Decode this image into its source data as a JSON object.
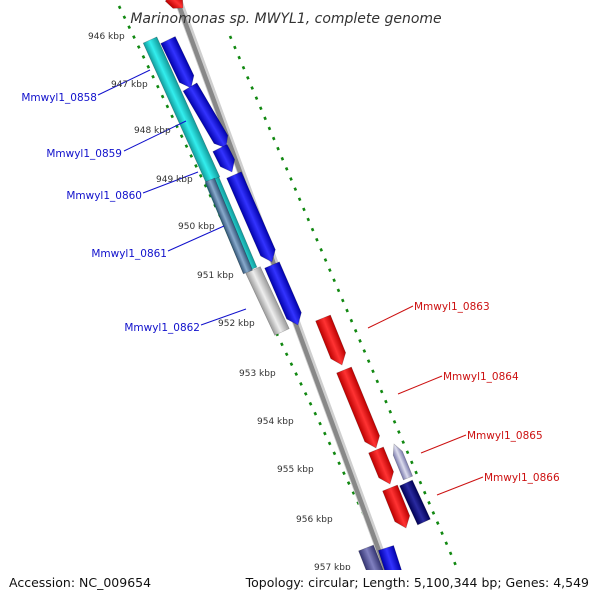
{
  "title": "Marinomonas sp. MWYL1, complete genome",
  "ticks": [
    "946 kbp",
    "947 kbp",
    "948 kbp",
    "949 kbp",
    "950 kbp",
    "951 kbp",
    "952 kbp",
    "953 kbp",
    "954 kbp",
    "955 kbp",
    "956 kbp",
    "957 kbp"
  ],
  "labels": {
    "left": [
      "Mmwyl1_0858",
      "Mmwyl1_0859",
      "Mmwyl1_0860",
      "Mmwyl1_0861",
      "Mmwyl1_0862"
    ],
    "right": [
      "Mmwyl1_0863",
      "Mmwyl1_0864",
      "Mmwyl1_0865",
      "Mmwyl1_0866"
    ]
  },
  "footer": {
    "accession": "Accession: NC_009654",
    "stats": "Topology: circular; Length: 5,100,344 bp; Genes: 4,549"
  },
  "colors": {
    "forward_cds": "#1515e6",
    "reverse_cds": "#ee1111",
    "tick_track": "#118811",
    "backbone": "#888888",
    "left_label": "#1111cc",
    "right_label": "#cc1111",
    "cyan_track": "#22cccc",
    "steel_track": "#5588aa",
    "gray_track": "#c0c0c0",
    "navy_track": "#0b0b7a",
    "slate_track": "#505094"
  }
}
